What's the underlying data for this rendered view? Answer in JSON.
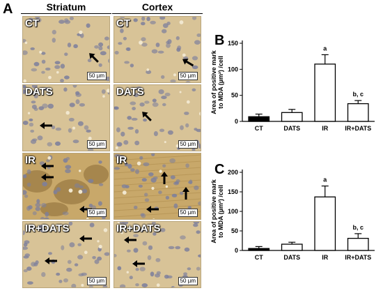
{
  "figure": {
    "panel_a_letter": "A",
    "panel_b_letter": "B",
    "panel_c_letter": "C",
    "columns": [
      "Striatum",
      "Cortex"
    ],
    "rows": [
      "CT",
      "DATS",
      "IR",
      "IR+DATS"
    ],
    "scale_bar_label": "50 µm",
    "tissue_color": "#d8c397",
    "nucleus_color": "#7d7f9c"
  },
  "chart_data": [
    {
      "type": "bar",
      "ylabel_lines": [
        "Area of positive mark",
        "to MDA (µm²) /cell"
      ],
      "categories": [
        "CT",
        "DATS",
        "IR",
        "IR+DATS"
      ],
      "values": [
        9,
        17,
        110,
        34
      ],
      "errors": [
        5,
        6,
        18,
        6
      ],
      "bar_colors": [
        "#000000",
        "#ffffff",
        "#ffffff",
        "#ffffff"
      ],
      "significance": [
        "",
        "",
        "a",
        "b, c"
      ],
      "ylim": [
        0,
        150
      ],
      "yticks": [
        0,
        50,
        100,
        150
      ]
    },
    {
      "type": "bar",
      "ylabel_lines": [
        "Area of positive mark",
        "to MDA (µm²) /cell"
      ],
      "categories": [
        "CT",
        "DATS",
        "IR",
        "IR+DATS"
      ],
      "values": [
        5,
        16,
        137,
        31
      ],
      "errors": [
        5,
        5,
        28,
        12
      ],
      "bar_colors": [
        "#000000",
        "#ffffff",
        "#ffffff",
        "#ffffff"
      ],
      "significance": [
        "",
        "",
        "a",
        "b, c"
      ],
      "ylim": [
        0,
        200
      ],
      "yticks": [
        0,
        50,
        100,
        150,
        200
      ]
    }
  ]
}
